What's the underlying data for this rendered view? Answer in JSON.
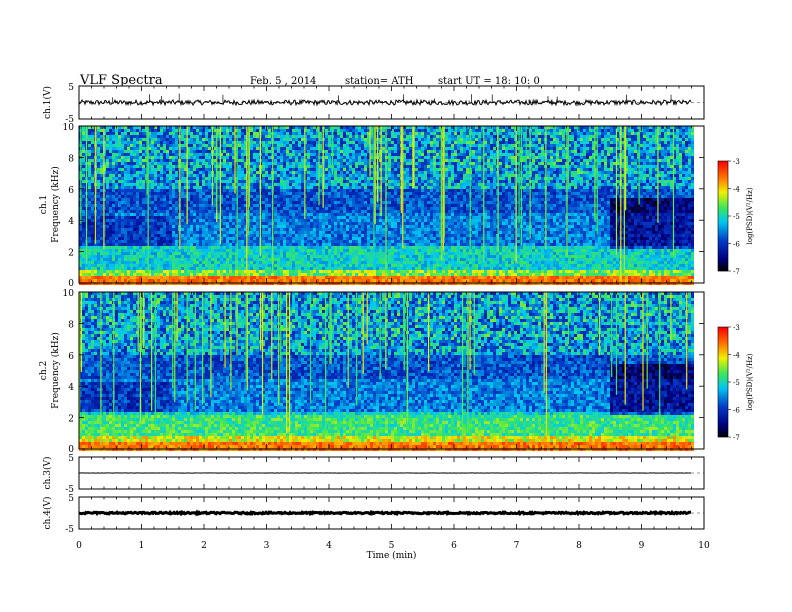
{
  "header": {
    "title": "VLF Spectra",
    "date": "Feb. 5 , 2014",
    "station": "station= ATH",
    "start": "start UT = 18: 10: 0"
  },
  "chart_data": {
    "type": "heatmap",
    "x": {
      "label": "Time (min)",
      "range": [
        0,
        10
      ],
      "ticks": [
        "0",
        "1",
        "2",
        "3",
        "4",
        "5",
        "6",
        "7",
        "8",
        "9",
        "10"
      ]
    },
    "panels": [
      {
        "type": "line",
        "ylabel": "ch.1(V)",
        "yrange": [
          -5,
          5
        ],
        "ticks": [
          "5",
          "-5"
        ],
        "baseline": 0,
        "noise": 0.5
      },
      {
        "type": "heatmap",
        "ylabel": "Frequency (kHz)",
        "channel_label": "ch.1",
        "yrange": [
          0,
          10
        ],
        "ticks": [
          "0",
          "2",
          "4",
          "6",
          "8",
          "10"
        ],
        "colorbar": {
          "label": "log(PSD)(V²/Hz)",
          "range": [
            -7,
            -3
          ],
          "ticks": [
            "-3",
            "-4",
            "-5",
            "-6",
            "-7"
          ]
        },
        "data_end_min": 9.8,
        "segment_breaks_min": [
          1.45,
          8.48
        ]
      },
      {
        "type": "heatmap",
        "ylabel": "Frequency (kHz)",
        "channel_label": "ch.2",
        "yrange": [
          0,
          10
        ],
        "ticks": [
          "0",
          "2",
          "4",
          "6",
          "8",
          "10"
        ],
        "colorbar": {
          "label": "log(PSD)(V²/Hz)",
          "range": [
            -7,
            -3
          ],
          "ticks": [
            "-3",
            "-4",
            "-5",
            "-6",
            "-7"
          ]
        },
        "data_end_min": 9.8,
        "segment_breaks_min": [
          1.45,
          8.48
        ]
      },
      {
        "type": "line",
        "ylabel": "ch.3(V)",
        "yrange": [
          -5,
          5
        ],
        "ticks": [
          "5",
          "-5"
        ],
        "baseline": 0,
        "noise": 0.05
      },
      {
        "type": "line",
        "ylabel": "ch.4(V)",
        "yrange": [
          -5,
          5
        ],
        "ticks": [
          "5",
          "-5"
        ],
        "baseline": 0,
        "noise": 0.25
      }
    ]
  }
}
